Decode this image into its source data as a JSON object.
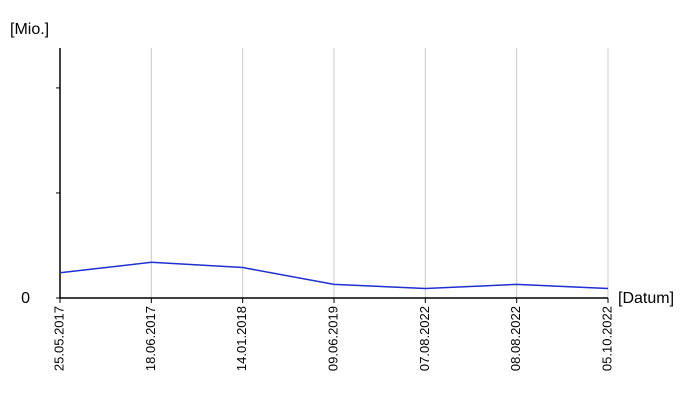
{
  "chart_data": {
    "type": "line",
    "y_label": "[Mio.]",
    "x_label": "[Datum]",
    "categories": [
      "25.05.2017",
      "18.06.2017",
      "14.01.2018",
      "09.06.2019",
      "07.08.2022",
      "08.08.2022",
      "05.10.2022"
    ],
    "series": [
      {
        "color": "#1f2fd0",
        "values": [
          0.24,
          0.34,
          0.29,
          0.13,
          0.09,
          0.13,
          0.09
        ]
      }
    ],
    "ylim": [
      0,
      2.38
    ],
    "yticks": [
      0
    ],
    "minor_yticks": [
      1,
      2
    ],
    "grid": true,
    "grid_color": "#c8c8c8"
  }
}
